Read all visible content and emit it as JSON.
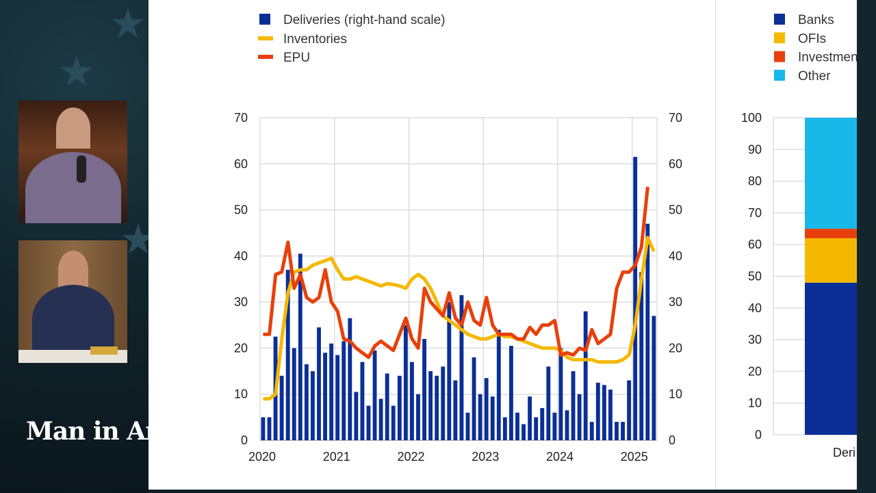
{
  "overlay": {
    "logo_text": "Man in America"
  },
  "chart_data": [
    {
      "type": "bar+line",
      "title": "",
      "legend": [
        "Deliveries (right-hand scale)",
        "Inventories",
        "EPU"
      ],
      "legend_placement": "top-left",
      "x_ticks": [
        "2020",
        "2021",
        "2022",
        "2023",
        "2024",
        "2025"
      ],
      "x_start": "2020-01",
      "frequency": "monthly",
      "y_left": {
        "range": [
          0,
          70
        ],
        "ticks": [
          0,
          10,
          20,
          30,
          40,
          50,
          60,
          70
        ]
      },
      "y_right": {
        "range": [
          0,
          70
        ],
        "ticks": [
          0,
          10,
          20,
          30,
          40,
          50,
          60,
          70
        ]
      },
      "grid": true,
      "series": [
        {
          "name": "Deliveries (right-hand scale)",
          "kind": "bar",
          "axis": "right",
          "color": "#0b2f96",
          "values": [
            5,
            5,
            22.5,
            14,
            37,
            20,
            40.5,
            16.5,
            15,
            24.5,
            19,
            21,
            18.5,
            21.5,
            26.5,
            10.5,
            17,
            7.5,
            19.5,
            9,
            14.5,
            7.5,
            14,
            25,
            17,
            10,
            22,
            15,
            14,
            16,
            30,
            13,
            31.5,
            6,
            18,
            10,
            13.5,
            9.5,
            24,
            5,
            20.5,
            6,
            3.5,
            9.5,
            5,
            7,
            16,
            6,
            20,
            6.5,
            15,
            10,
            28,
            4,
            12.5,
            12,
            11,
            4,
            4,
            13,
            61.5,
            36.5,
            47,
            27
          ]
        },
        {
          "name": "Inventories",
          "kind": "line",
          "axis": "left",
          "color": "#f5b800",
          "values": [
            9,
            9,
            10,
            22,
            32,
            36.5,
            37,
            37,
            38,
            38.5,
            39,
            39.5,
            37,
            35,
            35,
            35.5,
            35,
            34.5,
            34,
            33.5,
            34,
            33.8,
            33.5,
            33,
            35,
            36,
            35,
            33,
            30,
            27,
            26,
            25,
            24,
            23,
            22.5,
            22,
            22,
            22.5,
            23,
            22.5,
            22.5,
            22,
            21.5,
            21,
            20.5,
            20,
            20,
            20,
            19.5,
            18,
            17.5,
            17.5,
            17.5,
            17.5,
            17,
            17,
            17,
            17,
            17.5,
            18.5,
            25,
            35,
            44,
            41
          ]
        },
        {
          "name": "EPU",
          "kind": "line",
          "axis": "left",
          "color": "#e8400c",
          "values": [
            23,
            23,
            36,
            36.5,
            43,
            33,
            36,
            31,
            30,
            31,
            37,
            30,
            28,
            22,
            21.5,
            20,
            19,
            18,
            20.5,
            21.5,
            20.5,
            19.5,
            23,
            26.5,
            22,
            20,
            33,
            30,
            28.5,
            27,
            32,
            26.5,
            25,
            30,
            26,
            25,
            31,
            25,
            23,
            23,
            23,
            22,
            22,
            24.5,
            23,
            25,
            25,
            26,
            18.5,
            19,
            18.5,
            20,
            19.5,
            24,
            21,
            22,
            23,
            33,
            36.5,
            36.5,
            38,
            42,
            55,
            null
          ]
        }
      ]
    },
    {
      "type": "stacked-bar",
      "legend": [
        "Banks",
        "OFIs",
        "Investmen",
        "Other"
      ],
      "legend_placement": "top",
      "categories": [
        "Deri"
      ],
      "y_range": [
        0,
        100
      ],
      "y_ticks": [
        0,
        10,
        20,
        30,
        40,
        50,
        60,
        70,
        80,
        90,
        100
      ],
      "grid": true,
      "series": [
        {
          "name": "Banks",
          "color": "#0b2f96",
          "values": [
            48
          ]
        },
        {
          "name": "OFIs",
          "color": "#f5b800",
          "values": [
            14
          ]
        },
        {
          "name": "Investmen",
          "color": "#e8400c",
          "values": [
            3
          ]
        },
        {
          "name": "Other",
          "color": "#1ab8e8",
          "values": [
            35
          ]
        }
      ]
    }
  ]
}
